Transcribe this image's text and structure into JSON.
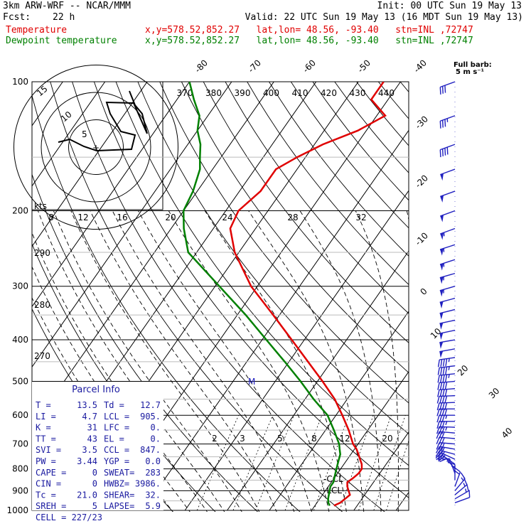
{
  "header": {
    "model": "3km ARW-WRF -- NCAR/MMM",
    "init": "Init: 00 UTC Sun 19 May 13",
    "fcst_label": "Fcst:",
    "fcst_value": "22 h",
    "valid": "Valid: 22 UTC Sun 19 May 13 (16 MDT Sun 19 May 13)",
    "temp_label": "Temperature",
    "temp_loc": "x,y=578.52,852.27   lat,lon= 48.56, -93.40   stn=INL ,72747",
    "dew_label": "Dewpoint temperature",
    "dew_loc": "x,y=578.52,852.27   lat,lon= 48.56, -93.40   stn=INL ,72747"
  },
  "colors": {
    "temperature": "#e00000",
    "dewpoint": "#008000",
    "barbs": "#2020c0",
    "parcel_text": "#1a1aa0"
  },
  "wind_key": {
    "line1": "Full barb:",
    "line2": "5 m s⁻¹"
  },
  "hodograph": {
    "rings": [
      "5",
      "10",
      "15"
    ],
    "storm_motion_mark": "+"
  },
  "parcel_info": {
    "title": "Parcel Info",
    "rows": [
      {
        "k1": "T  =",
        "v1": "13.5",
        "k2": "Td =",
        "v2": "12.7"
      },
      {
        "k1": "LI =",
        "v1": "4.7",
        "k2": "LCL =",
        "v2": "905."
      },
      {
        "k1": "K  =",
        "v1": "31",
        "k2": "LFC =",
        "v2": "0."
      },
      {
        "k1": "TT =",
        "v1": "43",
        "k2": "EL  =",
        "v2": "0."
      },
      {
        "k1": "SVI =",
        "v1": "3.5",
        "k2": "CCL =",
        "v2": "847."
      },
      {
        "k1": "PW =",
        "v1": "3.44",
        "k2": "YGP =",
        "v2": "0.0"
      },
      {
        "k1": "CAPE =",
        "v1": "0",
        "k2": "SWEAT=",
        "v2": "283"
      },
      {
        "k1": "CIN =",
        "v1": "0",
        "k2": "HWBZ=",
        "v2": "3986."
      },
      {
        "k1": "Tc =",
        "v1": "21.0",
        "k2": "SHEAR=",
        "v2": "32."
      },
      {
        "k1": "SREH =",
        "v1": "5",
        "k2": "LAPSE=",
        "v2": "5.9"
      }
    ],
    "cell": "CELL = 227/23"
  },
  "chart_data": {
    "type": "line",
    "diagram": "skew-T log-P",
    "y_axis": {
      "scale": "log",
      "range": [
        1000,
        100
      ],
      "ticks": [
        "100",
        "200",
        "300",
        "400",
        "500",
        "600",
        "700",
        "800",
        "900",
        "1000"
      ]
    },
    "isotherm_labels": [
      "-80",
      "-70",
      "-60",
      "-50",
      "-40",
      "-30",
      "-20",
      "-10",
      "0",
      "10",
      "20",
      "30",
      "40"
    ],
    "theta_labels": [
      "370",
      "380",
      "390",
      "400",
      "410",
      "420",
      "430",
      "440"
    ],
    "mixing_ratio_labels": [
      "2",
      "3",
      "5",
      "8",
      "12",
      "20"
    ],
    "wind_speed_labels": {
      "unit": "kts",
      "values": [
        "8",
        "12",
        "16",
        "20",
        "24",
        "28",
        "32"
      ]
    },
    "dry_adiabat_labels": [
      "290",
      "280",
      "270"
    ],
    "annotations": [
      "M",
      "-CCL",
      "-LCL"
    ],
    "series": [
      {
        "name": "Temperature",
        "pressure": [
          975,
          960,
          940,
          920,
          900,
          880,
          860,
          840,
          820,
          800,
          780,
          760,
          740,
          720,
          700,
          650,
          600,
          550,
          500,
          450,
          400,
          350,
          300,
          250,
          220,
          200,
          180,
          160,
          150,
          140,
          130,
          120,
          110,
          100
        ],
        "temperature": [
          14.5,
          15.5,
          16.0,
          16.5,
          15.5,
          14.5,
          13.8,
          14.5,
          15.0,
          15.0,
          14.2,
          13.0,
          11.8,
          10.5,
          8.8,
          5.5,
          1.5,
          -3.0,
          -8.8,
          -15.5,
          -23.0,
          -31.5,
          -41.5,
          -51.0,
          -56.0,
          -57.0,
          -55.0,
          -55.0,
          -52.0,
          -48.0,
          -42.0,
          -38.0,
          -44.0,
          -44.0
        ]
      },
      {
        "name": "Dewpoint temperature",
        "pressure": [
          975,
          960,
          940,
          920,
          900,
          880,
          860,
          840,
          820,
          800,
          780,
          760,
          740,
          720,
          700,
          650,
          600,
          550,
          500,
          450,
          400,
          350,
          300,
          250,
          220,
          200,
          180,
          160,
          150,
          140,
          130,
          120,
          110,
          100
        ],
        "dewpoint": [
          13.5,
          12.7,
          12.0,
          11.5,
          11.0,
          10.5,
          10.5,
          10.0,
          9.5,
          9.0,
          8.5,
          8.0,
          7.5,
          6.5,
          5.5,
          2.0,
          -2.0,
          -8.0,
          -14.0,
          -21.0,
          -29.0,
          -38.0,
          -49.0,
          -62.0,
          -67.0,
          -70.0,
          -71.0,
          -73.0,
          -75.0,
          -77.0,
          -80.0,
          -82.0,
          -86.0,
          -90.0
        ]
      }
    ],
    "wind_barbs": {
      "pressure": [
        960,
        940,
        920,
        900,
        880,
        850,
        820,
        800,
        780,
        760,
        740,
        720,
        700,
        680,
        660,
        640,
        620,
        600,
        580,
        560,
        540,
        520,
        500,
        480,
        460,
        440,
        420,
        400,
        380,
        360,
        340,
        320,
        300,
        280,
        260,
        240,
        220,
        200,
        180,
        160,
        140,
        120,
        100
      ],
      "direction_deg": [
        110,
        120,
        130,
        140,
        160,
        180,
        200,
        220,
        235,
        245,
        255,
        260,
        265,
        265,
        265,
        268,
        270,
        270,
        270,
        272,
        272,
        274,
        275,
        276,
        277,
        278,
        280,
        280,
        282,
        282,
        284,
        285,
        286,
        286,
        288,
        288,
        290,
        290,
        290,
        290,
        290,
        290,
        290
      ],
      "speed_ms": [
        7,
        8,
        8,
        9,
        10,
        9,
        9,
        10,
        12,
        14,
        15,
        15,
        16,
        17,
        17,
        18,
        18,
        19,
        20,
        20,
        21,
        22,
        22,
        23,
        23,
        24,
        25,
        25,
        26,
        26,
        27,
        27,
        28,
        28,
        28,
        28,
        28,
        27,
        26,
        25,
        20,
        18,
        15
      ]
    }
  }
}
